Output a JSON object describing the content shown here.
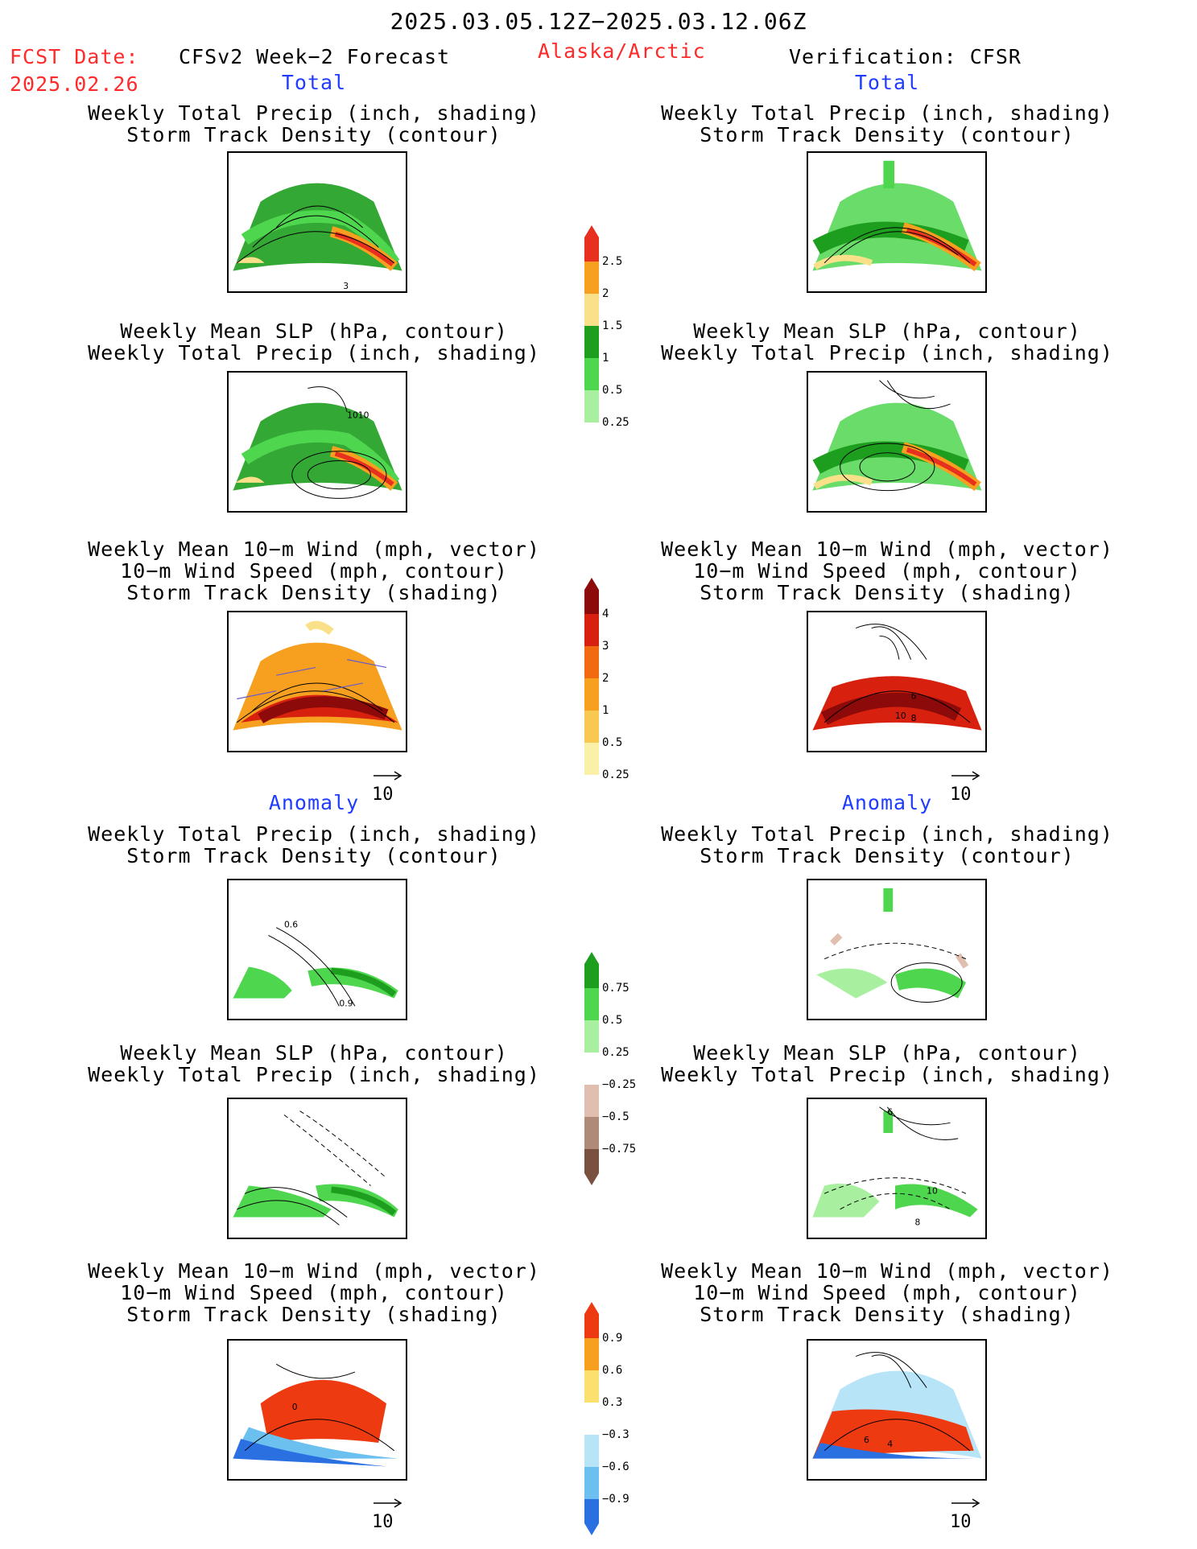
{
  "header": {
    "date_range": "2025.03.05.12Z−2025.03.12.06Z",
    "fcst_label": "FCST Date:",
    "fcst_date": "2025.02.26",
    "model": "CFSv2 Week−2 Forecast",
    "region": "Alaska/Arctic",
    "verification": "Verification: CFSR"
  },
  "sections": {
    "total_left": "Total",
    "total_right": "Total",
    "anomaly_left": "Anomaly",
    "anomaly_right": "Anomaly"
  },
  "panel_titles": {
    "precip_storm": [
      "Weekly Total Precip (inch, shading)",
      "Storm Track Density (contour)"
    ],
    "slp_precip": [
      "Weekly Mean SLP (hPa, contour)",
      "Weekly Total Precip (inch, shading)"
    ],
    "wind_storm": [
      "Weekly Mean 10−m Wind (mph, vector)",
      "10−m Wind Speed (mph, contour)",
      "Storm Track Density (shading)"
    ]
  },
  "vector_ref": "10",
  "colorbars": {
    "precip_total": {
      "labels": [
        "2.5",
        "2",
        "1.5",
        "1",
        "0.5",
        "0.25"
      ],
      "colors": [
        "#e8301e",
        "#f7a020",
        "#fbe08a",
        "#1e9e1e",
        "#4fd64f",
        "#a8f0a0"
      ]
    },
    "storm_total": {
      "labels": [
        "4",
        "3",
        "2",
        "1",
        "0.5",
        "0.25"
      ],
      "colors": [
        "#8c0a0a",
        "#d8200e",
        "#f26a10",
        "#f7a020",
        "#f8c850",
        "#fbf0a8"
      ]
    },
    "precip_anom": {
      "labels": [
        "0.75",
        "0.5",
        "0.25",
        "−0.25",
        "−0.5",
        "−0.75"
      ],
      "colors": [
        "#1e9e1e",
        "#4fd64f",
        "#a8f0a0",
        "#ffffff",
        "#e0bfb0",
        "#b08a78",
        "#7a5040"
      ]
    },
    "storm_anom": {
      "labels": [
        "0.9",
        "0.6",
        "0.3",
        "−0.3",
        "−0.6",
        "−0.9"
      ],
      "colors": [
        "#ee3a10",
        "#f7a020",
        "#fbe070",
        "#ffffff",
        "#b8e4f8",
        "#6cc0f0",
        "#2a70e0"
      ]
    }
  },
  "map_labels": {
    "m1": "3",
    "m3": "1010",
    "m6": [
      "6",
      "10",
      "8"
    ],
    "m7": [
      "0.6",
      "0.9"
    ],
    "m10": [
      "6",
      "10",
      "8"
    ],
    "m11": "0",
    "m12": [
      "6",
      "4"
    ]
  }
}
